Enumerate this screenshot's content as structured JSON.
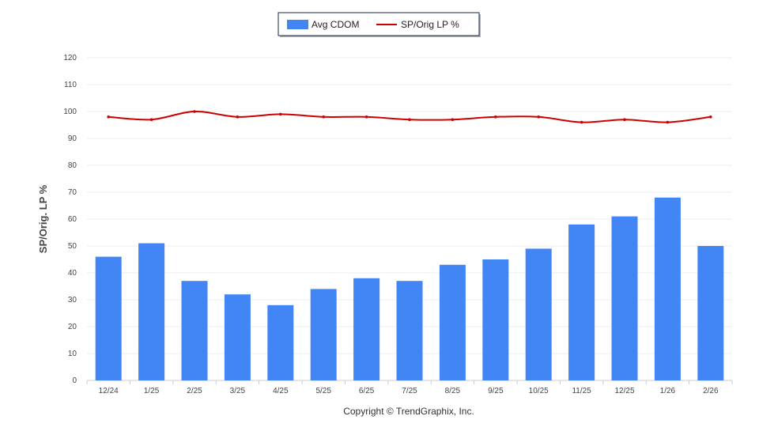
{
  "chart_data": {
    "type": "bar",
    "title": "",
    "ylabel": "SP/Orig. LP %",
    "xlabel": "",
    "ylim": [
      0,
      120
    ],
    "yticks": [
      0,
      10,
      20,
      30,
      40,
      50,
      60,
      70,
      80,
      90,
      100,
      110,
      120
    ],
    "grid": true,
    "legend_position": "top-center",
    "categories": [
      "12/24",
      "1/25",
      "2/25",
      "3/25",
      "4/25",
      "5/25",
      "6/25",
      "7/25",
      "8/25",
      "9/25",
      "10/25",
      "11/25",
      "12/25",
      "1/26",
      "2/26"
    ],
    "series": [
      {
        "name": "Avg CDOM",
        "type": "bar",
        "color": "#4285f4",
        "values": [
          46,
          51,
          37,
          32,
          28,
          34,
          38,
          37,
          43,
          45,
          49,
          58,
          61,
          68,
          50
        ]
      },
      {
        "name": "SP/Orig LP %",
        "type": "line",
        "color": "#cc0000",
        "values": [
          98,
          97,
          100,
          98,
          99,
          98,
          98,
          97,
          97,
          98,
          98,
          96,
          97,
          96,
          98
        ]
      }
    ]
  },
  "footer": {
    "copyright": "Copyright © TrendGraphix, Inc."
  }
}
